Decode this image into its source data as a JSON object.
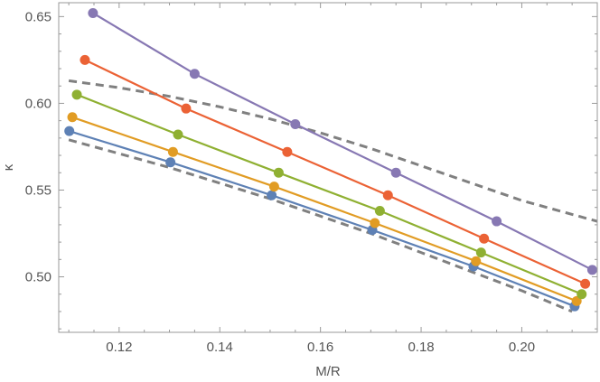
{
  "chart_data": {
    "type": "line",
    "xlabel": "M/R",
    "ylabel": "κ",
    "xlim": [
      0.108,
      0.215
    ],
    "ylim": [
      0.468,
      0.658
    ],
    "x_ticks": [
      0.12,
      0.14,
      0.16,
      0.18,
      0.2
    ],
    "x_tick_labels": [
      "0.12",
      "0.14",
      "0.16",
      "0.18",
      "0.20"
    ],
    "y_ticks": [
      0.5,
      0.55,
      0.6,
      0.65
    ],
    "y_tick_labels": [
      "0.50",
      "0.55",
      "0.60",
      "0.65"
    ],
    "grid": false,
    "series": [
      {
        "color": "#5E81B5",
        "style": "solid-markers",
        "x": [
          0.1101,
          0.1302,
          0.1503,
          0.1703,
          0.1904,
          0.2105
        ],
        "y": [
          0.584,
          0.566,
          0.547,
          0.527,
          0.506,
          0.483
        ]
      },
      {
        "color": "#E19C24",
        "style": "solid-markers",
        "x": [
          0.1107,
          0.1307,
          0.1508,
          0.1708,
          0.1909,
          0.2109
        ],
        "y": [
          0.592,
          0.572,
          0.552,
          0.531,
          0.509,
          0.486
        ]
      },
      {
        "color": "#8FB032",
        "style": "solid-markers",
        "x": [
          0.1116,
          0.1317,
          0.1517,
          0.1718,
          0.1919,
          0.2119
        ],
        "y": [
          0.605,
          0.582,
          0.56,
          0.538,
          0.514,
          0.49
        ]
      },
      {
        "color": "#EB6235",
        "style": "solid-markers",
        "x": [
          0.1132,
          0.1333,
          0.1534,
          0.1734,
          0.1925,
          0.2126
        ],
        "y": [
          0.625,
          0.597,
          0.572,
          0.547,
          0.522,
          0.496
        ]
      },
      {
        "color": "#8778B3",
        "style": "solid-markers",
        "x": [
          0.1148,
          0.135,
          0.155,
          0.175,
          0.195,
          0.214
        ],
        "y": [
          0.652,
          0.617,
          0.588,
          0.56,
          0.532,
          0.504
        ]
      },
      {
        "color": "#808080",
        "style": "dashed",
        "x": [
          0.11,
          0.12,
          0.13,
          0.14,
          0.15,
          0.16,
          0.17,
          0.18,
          0.19,
          0.2,
          0.21
        ],
        "y": [
          0.579,
          0.571,
          0.563,
          0.554,
          0.545,
          0.535,
          0.525,
          0.514,
          0.503,
          0.492,
          0.48
        ]
      },
      {
        "color": "#808080",
        "style": "dashed",
        "x": [
          0.11,
          0.12,
          0.13,
          0.14,
          0.15,
          0.16,
          0.17,
          0.18,
          0.19,
          0.2,
          0.215
        ],
        "y": [
          0.613,
          0.609,
          0.604,
          0.598,
          0.591,
          0.583,
          0.574,
          0.564,
          0.554,
          0.544,
          0.532
        ]
      }
    ]
  }
}
